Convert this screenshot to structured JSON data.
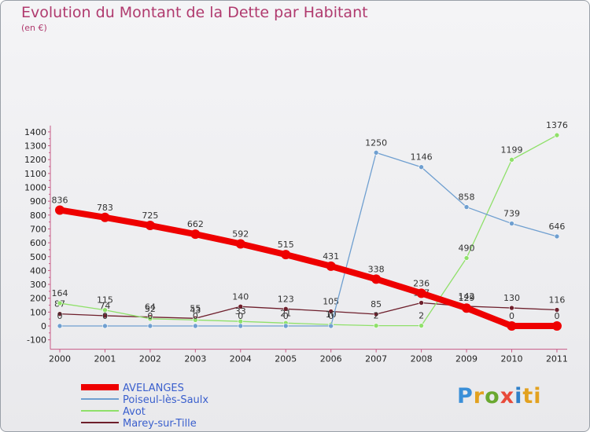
{
  "chart_data": {
    "type": "line",
    "title": "Evolution du Montant de la Dette par Habitant",
    "unit": "(en €)",
    "categories": [
      "2000",
      "2001",
      "2002",
      "2003",
      "2004",
      "2005",
      "2006",
      "2007",
      "2008",
      "2009",
      "2010",
      "2011"
    ],
    "ylim": [
      -100,
      1400
    ],
    "yticks": [
      -100,
      0,
      100,
      200,
      300,
      400,
      500,
      600,
      700,
      800,
      900,
      1000,
      1100,
      1200,
      1300,
      1400
    ],
    "series": [
      {
        "name": "Marey-sur-Tille",
        "color": "#6e1f2c",
        "values": [
          87,
          74,
          64,
          55,
          140,
          123,
          105,
          85,
          167,
          142,
          130,
          116
        ],
        "labels": [
          "87",
          "74",
          "64",
          "55",
          "140",
          "123",
          "105",
          "85",
          "167",
          "142",
          "130",
          "116"
        ]
      },
      {
        "name": "Avot",
        "color": "#8fe06a",
        "values": [
          164,
          115,
          52,
          43,
          33,
          21,
          10,
          2,
          2,
          490,
          1199,
          1376
        ],
        "labels": [
          "164",
          "115",
          "52",
          "43",
          "33",
          "21",
          "10",
          "2",
          "2",
          "490",
          "1199",
          "1376"
        ]
      },
      {
        "name": "Poiseul-lès-Saulx",
        "color": "#6f9fd0",
        "values": [
          0,
          0,
          0,
          0,
          0,
          0,
          0,
          1250,
          1146,
          858,
          739,
          646
        ],
        "labels": [
          "0",
          "0",
          "0",
          "0",
          "0",
          "0",
          "0",
          "1250",
          "1146",
          "858",
          "739",
          "646"
        ]
      },
      {
        "name": "AVELANGES",
        "color": "#ee0000",
        "values": [
          836,
          783,
          725,
          662,
          592,
          515,
          431,
          338,
          236,
          129,
          0,
          0
        ],
        "labels": [
          "836",
          "783",
          "725",
          "662",
          "592",
          "515",
          "431",
          "338",
          "236",
          "129",
          "0",
          "0"
        ]
      }
    ],
    "legend": [
      "AVELANGES",
      "Poiseul-lès-Saulx",
      "Avot",
      "Marey-sur-Tille"
    ]
  },
  "brand": [
    "P",
    "r",
    "o",
    "x",
    "i",
    "ti"
  ]
}
